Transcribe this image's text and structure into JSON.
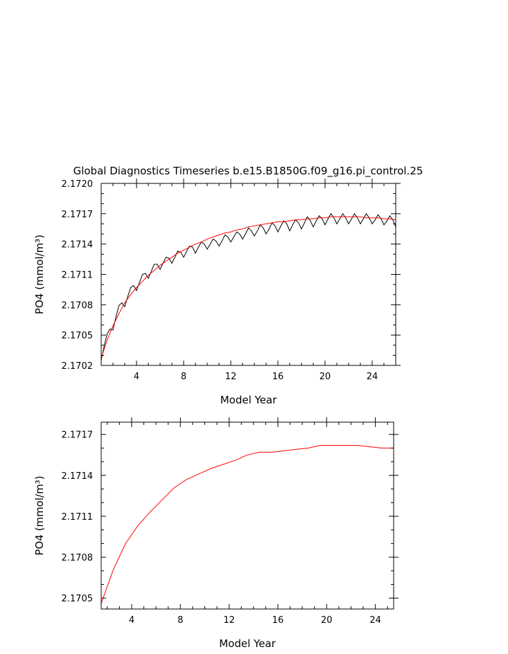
{
  "figure_title": "Global Diagnostics Timeseries b.e15.B1850G.f09_g16.pi_control.25",
  "colors": {
    "raw": "#000000",
    "smoothed": "#ff0000",
    "axes": "#000000"
  },
  "chart_data": [
    {
      "type": "line",
      "title": "Global Diagnostics Timeseries b.e15.B1850G.f09_g16.pi_control.25",
      "xlabel": "Model Year",
      "ylabel": "PO4 (mmol/m³)",
      "xlim": [
        1,
        26
      ],
      "ylim": [
        2.1702,
        2.172
      ],
      "xticks": [
        4,
        8,
        12,
        16,
        20,
        24
      ],
      "xtick_labels": [
        "4",
        "8",
        "12",
        "16",
        "20",
        "24"
      ],
      "yticks": [
        2.1702,
        2.1705,
        2.1708,
        2.1711,
        2.1714,
        2.1717,
        2.172
      ],
      "ytick_labels": [
        "2.1702",
        "2.1705",
        "2.1708",
        "2.1711",
        "2.1714",
        "2.1717",
        "2.1720"
      ],
      "grid": false,
      "series": [
        {
          "id": "raw-monthly",
          "color": "#000000",
          "x": [
            1.0,
            1.25,
            1.5,
            1.75,
            2.0,
            2.25,
            2.5,
            2.75,
            3.0,
            3.25,
            3.5,
            3.75,
            4.0,
            4.25,
            4.5,
            4.75,
            5.0,
            5.25,
            5.5,
            5.75,
            6.0,
            6.25,
            6.5,
            6.75,
            7.0,
            7.25,
            7.5,
            7.75,
            8.0,
            8.25,
            8.5,
            8.75,
            9.0,
            9.25,
            9.5,
            9.75,
            10.0,
            10.25,
            10.5,
            10.75,
            11.0,
            11.25,
            11.5,
            11.75,
            12.0,
            12.25,
            12.5,
            12.75,
            13.0,
            13.25,
            13.5,
            13.75,
            14.0,
            14.25,
            14.5,
            14.75,
            15.0,
            15.25,
            15.5,
            15.75,
            16.0,
            16.25,
            16.5,
            16.75,
            17.0,
            17.25,
            17.5,
            17.75,
            18.0,
            18.25,
            18.5,
            18.75,
            19.0,
            19.25,
            19.5,
            19.75,
            20.0,
            20.25,
            20.5,
            20.75,
            21.0,
            21.25,
            21.5,
            21.75,
            22.0,
            22.25,
            22.5,
            22.75,
            23.0,
            23.25,
            23.5,
            23.75,
            24.0,
            24.25,
            24.5,
            24.75,
            25.0,
            25.25,
            25.5,
            25.75,
            26.0
          ],
          "values": [
            2.17025,
            2.17039,
            2.17051,
            2.17056,
            2.17055,
            2.17068,
            2.17079,
            2.17082,
            2.17078,
            2.17088,
            2.17097,
            2.17099,
            2.17094,
            2.17102,
            2.1711,
            2.17111,
            2.17106,
            2.17113,
            2.1712,
            2.1712,
            2.17115,
            2.17121,
            2.17127,
            2.17126,
            2.17121,
            2.17127,
            2.17133,
            2.17132,
            2.17127,
            2.17133,
            2.17138,
            2.17137,
            2.17131,
            2.17137,
            2.17142,
            2.1714,
            2.17135,
            2.1714,
            2.17145,
            2.17143,
            2.17138,
            2.17143,
            2.17149,
            2.17147,
            2.17142,
            2.17147,
            2.17152,
            2.1715,
            2.17145,
            2.1715,
            2.17156,
            2.17153,
            2.17148,
            2.17153,
            2.17159,
            2.17156,
            2.1715,
            2.17155,
            2.17161,
            2.17158,
            2.17152,
            2.17158,
            2.17163,
            2.1716,
            2.17153,
            2.17159,
            2.17164,
            2.17161,
            2.17155,
            2.17161,
            2.17167,
            2.17163,
            2.17157,
            2.17163,
            2.17168,
            2.17165,
            2.17159,
            2.17165,
            2.1717,
            2.17166,
            2.1716,
            2.17165,
            2.1717,
            2.17166,
            2.1716,
            2.17165,
            2.1717,
            2.17166,
            2.1716,
            2.17165,
            2.1717,
            2.17166,
            2.1716,
            2.17164,
            2.17169,
            2.17165,
            2.17159,
            2.17163,
            2.17168,
            2.17164,
            2.17157
          ]
        },
        {
          "id": "smoothed",
          "color": "#ff0000",
          "x": [
            1.0,
            1.5,
            2.0,
            2.5,
            3.0,
            3.5,
            4.0,
            4.5,
            5.0,
            5.5,
            6.0,
            6.5,
            7.0,
            7.5,
            8.0,
            8.5,
            9.0,
            9.5,
            10.0,
            10.5,
            11.0,
            11.5,
            12.0,
            12.5,
            13.0,
            13.5,
            14.0,
            14.5,
            15.0,
            15.5,
            16.0,
            16.5,
            17.0,
            17.5,
            18.0,
            18.5,
            19.0,
            19.5,
            20.0,
            20.5,
            21.0,
            21.5,
            22.0,
            22.5,
            23.0,
            23.5,
            24.0,
            24.5,
            25.0,
            25.5,
            26.0
          ],
          "values": [
            2.17027,
            2.17045,
            2.17059,
            2.17071,
            2.17082,
            2.1709,
            2.17097,
            2.17103,
            2.17109,
            2.17114,
            2.17119,
            2.17123,
            2.17127,
            2.17131,
            2.17134,
            2.17137,
            2.1714,
            2.17142,
            2.17145,
            2.17147,
            2.17149,
            2.17151,
            2.17152,
            2.17154,
            2.17155,
            2.17157,
            2.17158,
            2.17159,
            2.1716,
            2.17161,
            2.17162,
            2.17162,
            2.17163,
            2.17164,
            2.17164,
            2.17165,
            2.17165,
            2.17166,
            2.17166,
            2.17167,
            2.17167,
            2.17167,
            2.17167,
            2.17167,
            2.17167,
            2.17166,
            2.17166,
            2.17166,
            2.17165,
            2.17165,
            2.17164
          ]
        }
      ]
    },
    {
      "type": "line",
      "xlabel": "Model Year",
      "ylabel": "PO4 (mmol/m³)",
      "xlim": [
        1.5,
        25.5
      ],
      "ylim": [
        2.17042,
        2.17179
      ],
      "xticks": [
        4,
        8,
        12,
        16,
        20,
        24
      ],
      "xtick_labels": [
        "4",
        "8",
        "12",
        "16",
        "20",
        "24"
      ],
      "yticks": [
        2.1705,
        2.1708,
        2.1711,
        2.1714,
        2.1717
      ],
      "ytick_labels": [
        "2.1705",
        "2.1708",
        "2.1711",
        "2.1714",
        "2.1717"
      ],
      "grid": false,
      "series": [
        {
          "id": "annual-mean",
          "color": "#ff0000",
          "x": [
            1.5,
            2.5,
            3.5,
            4.5,
            5.5,
            6.5,
            7.5,
            8.5,
            9.5,
            10.5,
            11.5,
            12.5,
            13.5,
            14.5,
            15.5,
            16.5,
            17.5,
            18.5,
            19.5,
            20.5,
            21.5,
            22.5,
            23.5,
            24.5,
            25.5
          ],
          "values": [
            2.17046,
            2.17071,
            2.1709,
            2.17103,
            2.17113,
            2.17122,
            2.17131,
            2.17137,
            2.17141,
            2.17145,
            2.17148,
            2.17151,
            2.17155,
            2.17157,
            2.17157,
            2.17158,
            2.17159,
            2.1716,
            2.17162,
            2.17162,
            2.17162,
            2.17162,
            2.17161,
            2.1716,
            2.1716
          ]
        }
      ]
    }
  ]
}
